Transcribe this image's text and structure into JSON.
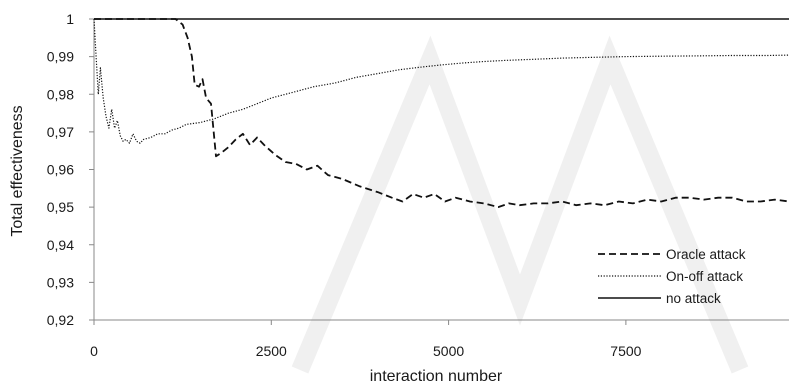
{
  "chart_data": {
    "type": "line",
    "title": "",
    "xlabel": "interaction number",
    "ylabel": "Total effectiveness",
    "xlim": [
      0,
      9800
    ],
    "ylim": [
      0.92,
      1.0
    ],
    "x_ticks": [
      {
        "value": 0,
        "label": "0"
      },
      {
        "value": 2500,
        "label": "2500"
      },
      {
        "value": 5000,
        "label": "5000"
      },
      {
        "value": 7500,
        "label": "7500"
      }
    ],
    "y_ticks": [
      {
        "value": 1.0,
        "label": "1"
      },
      {
        "value": 0.99,
        "label": "0,99"
      },
      {
        "value": 0.98,
        "label": "0,98"
      },
      {
        "value": 0.97,
        "label": "0,97"
      },
      {
        "value": 0.96,
        "label": "0,96"
      },
      {
        "value": 0.95,
        "label": "0,95"
      },
      {
        "value": 0.94,
        "label": "0,94"
      },
      {
        "value": 0.93,
        "label": "0,93"
      },
      {
        "value": 0.92,
        "label": "0,92"
      }
    ],
    "grid": false,
    "legend_position": "bottom-right",
    "series": [
      {
        "name": "Oracle attack",
        "style": "dashed",
        "color": "#111111",
        "points": [
          [
            0,
            1.0
          ],
          [
            1150,
            1.0
          ],
          [
            1250,
            0.9985
          ],
          [
            1320,
            0.995
          ],
          [
            1380,
            0.99
          ],
          [
            1420,
            0.9825
          ],
          [
            1480,
            0.982
          ],
          [
            1530,
            0.984
          ],
          [
            1580,
            0.979
          ],
          [
            1650,
            0.9775
          ],
          [
            1720,
            0.9635
          ],
          [
            1800,
            0.9645
          ],
          [
            1900,
            0.966
          ],
          [
            2000,
            0.968
          ],
          [
            2100,
            0.9695
          ],
          [
            2200,
            0.9665
          ],
          [
            2300,
            0.9685
          ],
          [
            2400,
            0.9665
          ],
          [
            2550,
            0.964
          ],
          [
            2700,
            0.962
          ],
          [
            2850,
            0.9615
          ],
          [
            3000,
            0.96
          ],
          [
            3150,
            0.961
          ],
          [
            3300,
            0.9585
          ],
          [
            3500,
            0.9575
          ],
          [
            3750,
            0.9555
          ],
          [
            4000,
            0.954
          ],
          [
            4200,
            0.9525
          ],
          [
            4350,
            0.9515
          ],
          [
            4500,
            0.9535
          ],
          [
            4650,
            0.9525
          ],
          [
            4800,
            0.9535
          ],
          [
            4950,
            0.9515
          ],
          [
            5100,
            0.9525
          ],
          [
            5300,
            0.9515
          ],
          [
            5500,
            0.951
          ],
          [
            5700,
            0.95
          ],
          [
            5850,
            0.951
          ],
          [
            6000,
            0.9505
          ],
          [
            6200,
            0.951
          ],
          [
            6400,
            0.951
          ],
          [
            6600,
            0.9515
          ],
          [
            6800,
            0.9505
          ],
          [
            7000,
            0.951
          ],
          [
            7200,
            0.9505
          ],
          [
            7400,
            0.9515
          ],
          [
            7600,
            0.951
          ],
          [
            7800,
            0.952
          ],
          [
            8000,
            0.9515
          ],
          [
            8200,
            0.9525
          ],
          [
            8400,
            0.9525
          ],
          [
            8600,
            0.952
          ],
          [
            8800,
            0.9525
          ],
          [
            9000,
            0.9525
          ],
          [
            9200,
            0.9515
          ],
          [
            9400,
            0.9515
          ],
          [
            9600,
            0.952
          ],
          [
            9800,
            0.9515
          ]
        ]
      },
      {
        "name": "On-off attack",
        "style": "dotted",
        "color": "#111111",
        "points": [
          [
            0,
            1.0
          ],
          [
            30,
            0.99
          ],
          [
            60,
            0.98
          ],
          [
            90,
            0.987
          ],
          [
            130,
            0.979
          ],
          [
            170,
            0.974
          ],
          [
            210,
            0.971
          ],
          [
            250,
            0.976
          ],
          [
            290,
            0.971
          ],
          [
            330,
            0.973
          ],
          [
            370,
            0.969
          ],
          [
            410,
            0.9675
          ],
          [
            450,
            0.968
          ],
          [
            500,
            0.967
          ],
          [
            550,
            0.9695
          ],
          [
            600,
            0.9675
          ],
          [
            650,
            0.967
          ],
          [
            700,
            0.968
          ],
          [
            800,
            0.9685
          ],
          [
            900,
            0.9695
          ],
          [
            1000,
            0.9695
          ],
          [
            1100,
            0.9705
          ],
          [
            1200,
            0.971
          ],
          [
            1300,
            0.972
          ],
          [
            1500,
            0.9725
          ],
          [
            1700,
            0.9735
          ],
          [
            1900,
            0.975
          ],
          [
            2100,
            0.976
          ],
          [
            2300,
            0.9775
          ],
          [
            2500,
            0.979
          ],
          [
            2800,
            0.9805
          ],
          [
            3100,
            0.982
          ],
          [
            3400,
            0.983
          ],
          [
            3700,
            0.9845
          ],
          [
            4000,
            0.9855
          ],
          [
            4300,
            0.9865
          ],
          [
            4600,
            0.9872
          ],
          [
            4900,
            0.9878
          ],
          [
            5200,
            0.9883
          ],
          [
            5500,
            0.9887
          ],
          [
            5800,
            0.989
          ],
          [
            6200,
            0.9893
          ],
          [
            6600,
            0.9896
          ],
          [
            7000,
            0.9898
          ],
          [
            7500,
            0.99
          ],
          [
            8000,
            0.9901
          ],
          [
            8500,
            0.9902
          ],
          [
            9000,
            0.9903
          ],
          [
            9500,
            0.9903
          ],
          [
            9800,
            0.9904
          ]
        ]
      },
      {
        "name": "no attack",
        "style": "solid",
        "color": "#111111",
        "points": [
          [
            0,
            1.0
          ],
          [
            9800,
            1.0
          ]
        ]
      }
    ]
  }
}
